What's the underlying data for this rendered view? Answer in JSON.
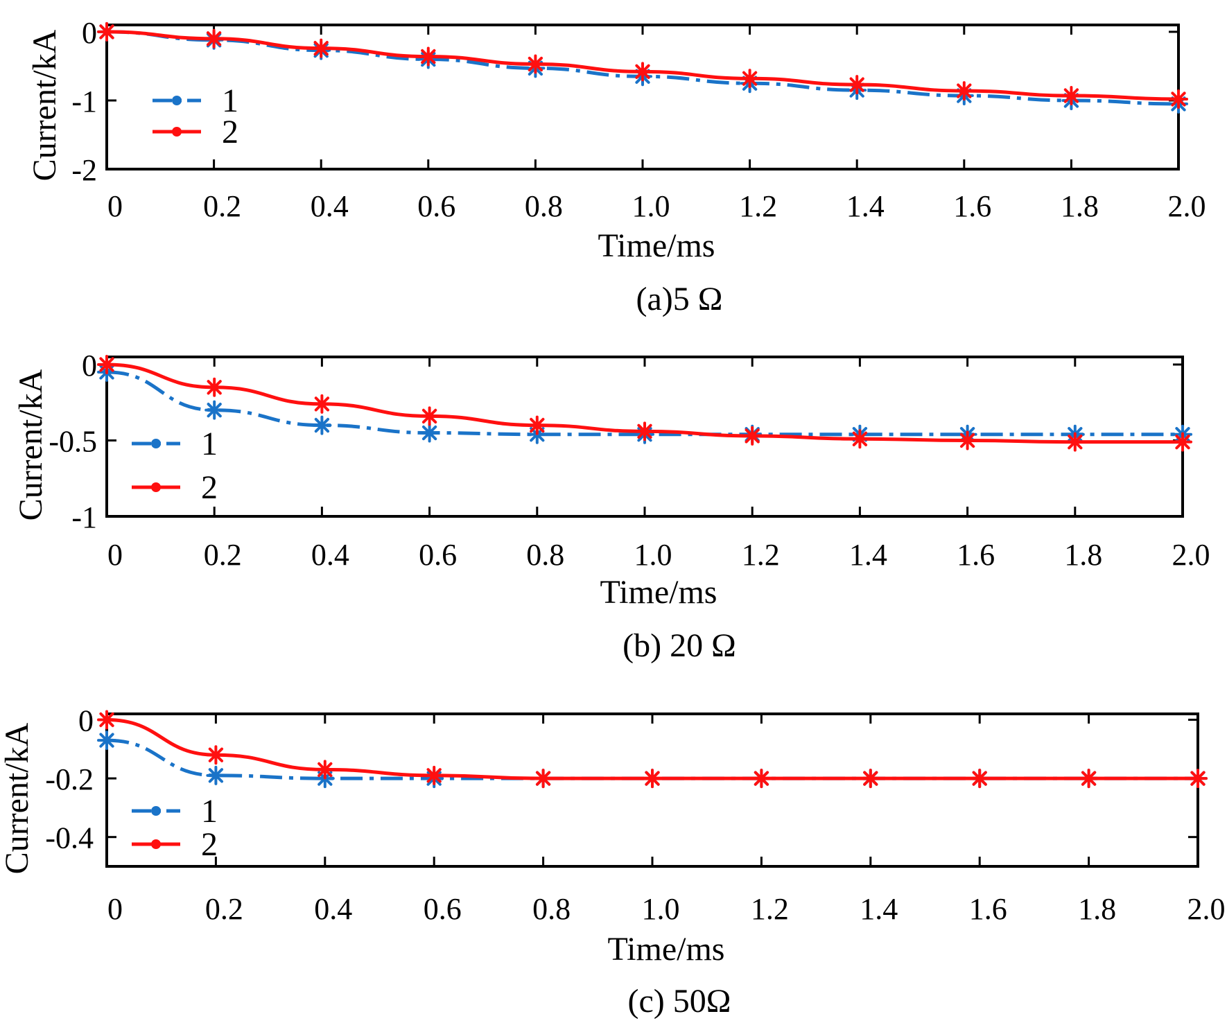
{
  "colors": {
    "series1": "#1a73c8",
    "series2": "#ff1010",
    "axis": "#000000"
  },
  "chart_data": [
    {
      "type": "line",
      "title": "(a)5 Ω",
      "xlabel": "Time/ms",
      "ylabel": "Current/kA",
      "xlim": [
        0,
        2.0
      ],
      "ylim": [
        -2,
        0.1
      ],
      "xticks": [
        0,
        0.2,
        0.4,
        0.6,
        0.8,
        1.0,
        1.2,
        1.4,
        1.6,
        1.8,
        2.0
      ],
      "xtick_labels": [
        "0",
        "0.2",
        "0.4",
        "0.6",
        "0.8",
        "1.0",
        "1.2",
        "1.4",
        "1.6",
        "1.8",
        "2.0"
      ],
      "yticks": [
        0,
        -1,
        -2
      ],
      "ytick_labels": [
        "0",
        "-1",
        "-2"
      ],
      "legend": [
        "1",
        "2"
      ],
      "x": [
        0,
        0.2,
        0.4,
        0.6,
        0.8,
        1.0,
        1.2,
        1.4,
        1.6,
        1.8,
        2.0
      ],
      "series": [
        {
          "name": "1",
          "values": [
            0.0,
            -0.12,
            -0.27,
            -0.4,
            -0.53,
            -0.65,
            -0.75,
            -0.85,
            -0.93,
            -1.0,
            -1.05
          ]
        },
        {
          "name": "2",
          "values": [
            0.0,
            -0.1,
            -0.24,
            -0.36,
            -0.47,
            -0.58,
            -0.68,
            -0.77,
            -0.86,
            -0.93,
            -0.98
          ]
        }
      ]
    },
    {
      "type": "line",
      "title": "(b) 20 Ω",
      "xlabel": "Time/ms",
      "ylabel": "Current/kA",
      "xlim": [
        0,
        2.0
      ],
      "ylim": [
        -1,
        0.05
      ],
      "xticks": [
        0,
        0.2,
        0.4,
        0.6,
        0.8,
        1.0,
        1.2,
        1.4,
        1.6,
        1.8,
        2.0
      ],
      "xtick_labels": [
        "0",
        "0.2",
        "0.4",
        "0.6",
        "0.8",
        "1.0",
        "1.2",
        "1.4",
        "1.6",
        "1.8",
        "2.0"
      ],
      "yticks": [
        0,
        -0.5,
        -1
      ],
      "ytick_labels": [
        "0",
        "-0.5",
        "-1"
      ],
      "legend": [
        "1",
        "2"
      ],
      "x": [
        0,
        0.2,
        0.4,
        0.6,
        0.8,
        1.0,
        1.2,
        1.4,
        1.6,
        1.8,
        2.0
      ],
      "series": [
        {
          "name": "1",
          "values": [
            -0.05,
            -0.3,
            -0.4,
            -0.45,
            -0.46,
            -0.46,
            -0.46,
            -0.46,
            -0.46,
            -0.46,
            -0.46
          ]
        },
        {
          "name": "2",
          "values": [
            0.0,
            -0.15,
            -0.26,
            -0.34,
            -0.4,
            -0.44,
            -0.47,
            -0.49,
            -0.5,
            -0.51,
            -0.51
          ]
        }
      ]
    },
    {
      "type": "line",
      "title": "(c) 50Ω",
      "xlabel": "Time/ms",
      "ylabel": "Current/kA",
      "xlim": [
        0,
        2.0
      ],
      "ylim": [
        -0.5,
        0.02
      ],
      "xticks": [
        0,
        0.2,
        0.4,
        0.6,
        0.8,
        1.0,
        1.2,
        1.4,
        1.6,
        1.8,
        2.0
      ],
      "xtick_labels": [
        "0",
        "0.2",
        "0.4",
        "0.6",
        "0.8",
        "1.0",
        "1.2",
        "1.4",
        "1.6",
        "1.8",
        "2.0"
      ],
      "yticks": [
        0,
        -0.2,
        -0.4
      ],
      "ytick_labels": [
        "0",
        "-0.2",
        "-0.4"
      ],
      "legend": [
        "1",
        "2"
      ],
      "x": [
        0,
        0.2,
        0.4,
        0.6,
        0.8,
        1.0,
        1.2,
        1.4,
        1.6,
        1.8,
        2.0
      ],
      "series": [
        {
          "name": "1",
          "values": [
            -0.07,
            -0.19,
            -0.2,
            -0.2,
            -0.2,
            -0.2,
            -0.2,
            -0.2,
            -0.2,
            -0.2,
            -0.2
          ]
        },
        {
          "name": "2",
          "values": [
            0.0,
            -0.12,
            -0.17,
            -0.19,
            -0.2,
            -0.2,
            -0.2,
            -0.2,
            -0.2,
            -0.2,
            -0.2
          ]
        }
      ]
    }
  ]
}
